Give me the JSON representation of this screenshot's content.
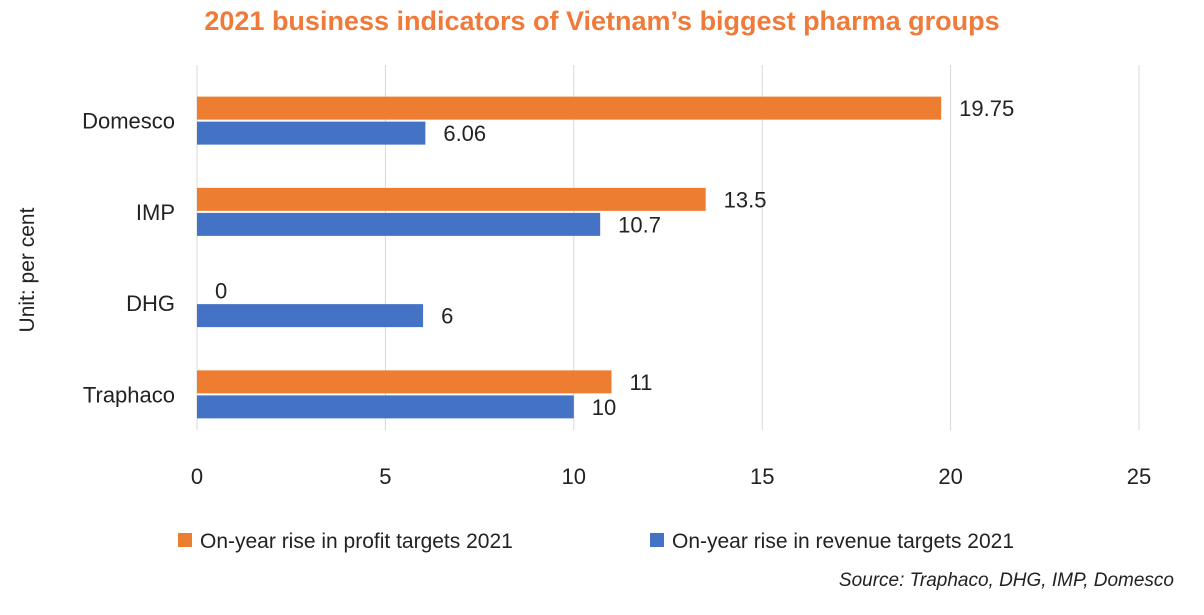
{
  "chart_data": {
    "type": "bar",
    "orientation": "horizontal",
    "title": "2021 business indicators of Vietnam’s biggest pharma groups",
    "ylabel": "Unit: per cent",
    "xlabel": "",
    "categories": [
      "Domesco",
      "IMP",
      "DHG",
      "Traphaco"
    ],
    "series": [
      {
        "name": "On-year rise in profit targets 2021",
        "color": "#ED7D31",
        "values": [
          19.75,
          13.5,
          0,
          11
        ],
        "labels": [
          "19.75",
          "13.5",
          "0",
          "11"
        ]
      },
      {
        "name": "On-year rise in revenue targets 2021",
        "color": "#4472C4",
        "values": [
          6.06,
          10.7,
          6,
          10
        ],
        "labels": [
          "6.06",
          "10.7",
          "6",
          "10"
        ]
      }
    ],
    "xlim": [
      0,
      25
    ],
    "xticks": [
      "0",
      "5",
      "10",
      "15",
      "20",
      "25"
    ],
    "grid": true,
    "legend_position": "bottom",
    "source": "Source: Traphaco, DHG, IMP, Domesco"
  }
}
